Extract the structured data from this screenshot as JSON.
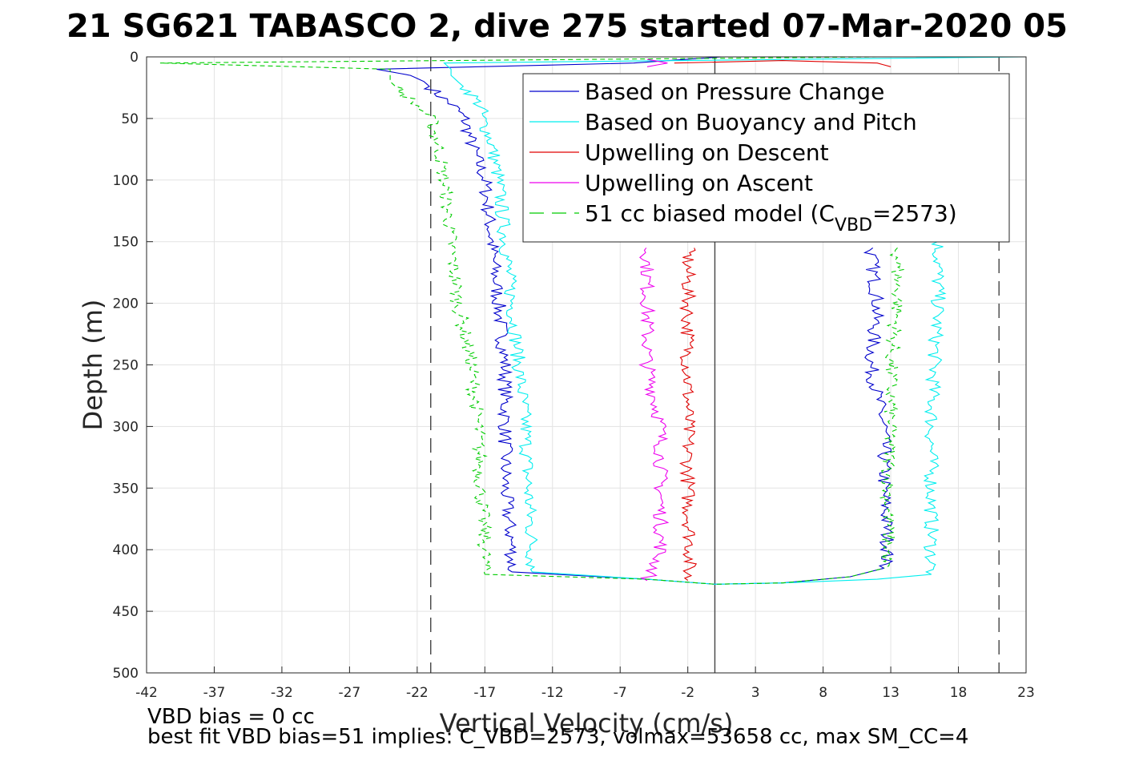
{
  "chart_data": {
    "type": "line",
    "title": "21 SG621 TABASCO 2, dive 275 started 07-Mar-2020 05",
    "xlabel": "Vertical Velocity (cm/s)",
    "ylabel": "Depth (m)",
    "xlim": [
      -42,
      23
    ],
    "ylim": [
      0,
      500
    ],
    "y_reversed": true,
    "grid": true,
    "xticks": [
      -42,
      -37,
      -32,
      -27,
      -22,
      -17,
      -12,
      -7,
      -2,
      3,
      8,
      13,
      18,
      23
    ],
    "yticks": [
      0,
      50,
      100,
      150,
      200,
      250,
      300,
      350,
      400,
      450,
      500
    ],
    "legend_position": "top-right",
    "legend": [
      {
        "label": "Based on Pressure Change",
        "color": "#0000cc",
        "dash": "solid"
      },
      {
        "label": "Based on Buoyancy and Pitch",
        "color": "#00eeee",
        "dash": "solid"
      },
      {
        "label": "Upwelling on Descent",
        "color": "#e00000",
        "dash": "solid"
      },
      {
        "label": "Upwelling on Ascent",
        "color": "#ee00ee",
        "dash": "solid"
      },
      {
        "label_main": "51 cc biased model (C",
        "label_sub": "VBD",
        "label_end": "=2573)",
        "color": "#00cc00",
        "dash": "dashed"
      }
    ],
    "reference_lines": [
      {
        "x": -21,
        "style": "dashed",
        "color": "#444444"
      },
      {
        "x": 21,
        "style": "dashed",
        "color": "#444444"
      },
      {
        "x": 0,
        "style": "solid",
        "color": "#444444"
      }
    ],
    "series": [
      {
        "key": "pressure_change",
        "color": "#0000cc",
        "dash": "solid",
        "descent": {
          "depth": [
            0,
            5,
            10,
            15,
            20,
            30,
            40,
            50,
            70,
            100,
            150,
            200,
            250,
            300,
            350,
            400,
            418
          ],
          "x": [
            0.5,
            -6,
            -25,
            -22.5,
            -21.5,
            -20.5,
            -19.3,
            -18.5,
            -18,
            -17,
            -16.5,
            -16,
            -15.5,
            -15.5,
            -15.5,
            -15,
            -15
          ]
        },
        "ascent": {
          "depth": [
            155,
            200,
            250,
            300,
            350,
            400,
            415
          ],
          "x": [
            11.5,
            12,
            11.5,
            12.5,
            12.5,
            12.8,
            12.5
          ]
        },
        "bottom": {
          "depth": [
            418,
            424,
            428,
            427,
            422,
            415
          ],
          "x": [
            -15,
            -5,
            0,
            5,
            10,
            12.5
          ]
        }
      },
      {
        "key": "buoyancy_pitch",
        "color": "#00eeee",
        "dash": "solid",
        "descent": {
          "depth": [
            0,
            5,
            10,
            15,
            20,
            30,
            40,
            50,
            70,
            100,
            150,
            200,
            250,
            300,
            350,
            400,
            418
          ],
          "x": [
            23,
            -20,
            -19.5,
            -19.5,
            -19,
            -18,
            -17.3,
            -17.2,
            -16.5,
            -16,
            -15.5,
            -15,
            -14.5,
            -14,
            -13.8,
            -13.5,
            -13.5
          ]
        },
        "ascent": {
          "depth": [
            150,
            200,
            250,
            300,
            350,
            400,
            420
          ],
          "x": [
            16.5,
            16.5,
            16.2,
            16,
            16,
            16,
            16
          ]
        },
        "bottom": {
          "depth": [
            418,
            424,
            428,
            427,
            424,
            420
          ],
          "x": [
            -13.5,
            -5,
            0,
            5,
            12,
            16
          ]
        }
      },
      {
        "key": "upwelling_descent",
        "color": "#e00000",
        "dash": "solid",
        "descent": {
          "depth": [
            155,
            200,
            250,
            300,
            350,
            400,
            425
          ],
          "x": [
            -2,
            -2,
            -2,
            -2,
            -2,
            -1.8,
            -2
          ]
        },
        "ascent": {
          "depth": [
            5,
            3,
            5,
            8
          ],
          "x": [
            -3,
            5,
            12,
            13
          ]
        },
        "bottom": {
          "depth": [],
          "x": []
        }
      },
      {
        "key": "upwelling_ascent",
        "color": "#ee00ee",
        "dash": "solid",
        "descent": {
          "depth": [
            155,
            200,
            250,
            300,
            350,
            400,
            415,
            425
          ],
          "x": [
            -5,
            -5,
            -5,
            -4,
            -4,
            -4,
            -4.5,
            -5
          ]
        },
        "ascent": {
          "depth": [
            2,
            5,
            8
          ],
          "x": [
            -5,
            -3.5,
            -5
          ]
        },
        "bottom": {
          "depth": [],
          "x": []
        }
      },
      {
        "key": "biased_model",
        "color": "#00cc00",
        "dash": "dashed",
        "descent": {
          "depth": [
            0,
            5,
            10,
            15,
            20,
            30,
            40,
            50,
            70,
            100,
            150,
            200,
            250,
            300,
            350,
            400,
            420
          ],
          "x": [
            12,
            -41,
            -24,
            -24,
            -24,
            -23,
            -22,
            -21,
            -20.5,
            -20,
            -19.5,
            -19,
            -18,
            -17.5,
            -17.3,
            -17,
            -17
          ]
        },
        "ascent": {
          "depth": [
            155,
            200,
            250,
            300,
            350,
            400,
            415
          ],
          "x": [
            13.5,
            13.5,
            13,
            13,
            12.8,
            12.8,
            12.5
          ]
        },
        "bottom": {
          "depth": [
            420,
            424,
            428,
            427,
            422,
            415
          ],
          "x": [
            -17,
            -5,
            0,
            5,
            10,
            12.5
          ]
        }
      }
    ]
  },
  "notes": {
    "line1": "VBD bias = 0 cc",
    "line2": "best fit VBD bias=51 implies: C_VBD=2573, volmax=53658 cc, max SM_CC=4"
  }
}
